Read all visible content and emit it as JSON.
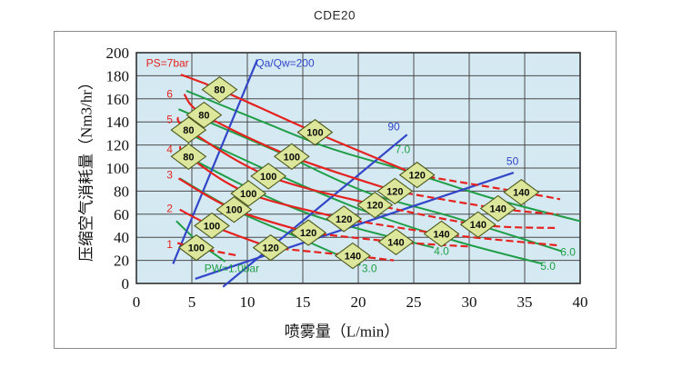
{
  "title": "CDE20",
  "chart_data": {
    "type": "line",
    "title": "CDE20",
    "xlabel": "喷雾量（L/min）",
    "ylabel": "压缩空气消耗量（Nm3/hr）",
    "xlim": [
      0,
      40
    ],
    "ylim": [
      0,
      200
    ],
    "x_ticks": [
      0,
      5,
      10,
      15,
      20,
      25,
      30,
      35,
      40
    ],
    "y_ticks": [
      0,
      20,
      40,
      60,
      80,
      100,
      120,
      140,
      160,
      180,
      200
    ],
    "grid": true,
    "legend_position": "none",
    "colors": {
      "plot_bg": "#d5e9f2",
      "grid": "#4a4a4a",
      "plot_border": "#2f2f2f",
      "frame": "#8a8a8a",
      "red": "#e42320",
      "green": "#1f9e47",
      "blue": "#3246c8",
      "marker_fill": "#dce79b",
      "marker_border": "#4e5a1d",
      "text": "#111111"
    },
    "red_series": [
      {
        "name": "PS=7bar",
        "label": "PS=7bar",
        "label_pos": [
          2.8,
          191
        ],
        "dash_from": 3,
        "points": [
          [
            4.0,
            181
          ],
          [
            7.5,
            168
          ],
          [
            16.1,
            131
          ],
          [
            25.3,
            94
          ],
          [
            34.7,
            79
          ],
          [
            38.2,
            73
          ]
        ],
        "markers": [
          {
            "label": "80",
            "x": 7.5,
            "y": 168
          },
          {
            "label": "100",
            "x": 16.1,
            "y": 131
          },
          {
            "label": "120",
            "x": 25.3,
            "y": 94
          },
          {
            "label": "140",
            "x": 34.7,
            "y": 79
          }
        ]
      },
      {
        "name": "PS=6bar",
        "label": "6",
        "label_pos": [
          3.0,
          164
        ],
        "dash_from": 3,
        "points": [
          [
            4.3,
            164
          ],
          [
            6.1,
            146
          ],
          [
            14.0,
            110
          ],
          [
            23.3,
            80
          ],
          [
            32.6,
            65
          ],
          [
            38.0,
            60
          ]
        ],
        "markers": [
          {
            "label": "80",
            "x": 6.1,
            "y": 146
          },
          {
            "label": "100",
            "x": 14.0,
            "y": 110
          },
          {
            "label": "120",
            "x": 23.3,
            "y": 80
          },
          {
            "label": "140",
            "x": 32.6,
            "y": 65
          }
        ]
      },
      {
        "name": "PS=5bar",
        "label": "5",
        "label_pos": [
          3.0,
          142
        ],
        "dash_from": 3,
        "points": [
          [
            3.7,
            144
          ],
          [
            4.7,
            133
          ],
          [
            11.9,
            93
          ],
          [
            21.5,
            68
          ],
          [
            30.8,
            51
          ],
          [
            38.0,
            48
          ]
        ],
        "markers": [
          {
            "label": "80",
            "x": 4.7,
            "y": 133
          },
          {
            "label": "100",
            "x": 11.9,
            "y": 93
          },
          {
            "label": "120",
            "x": 21.5,
            "y": 68
          },
          {
            "label": "140",
            "x": 30.8,
            "y": 51
          }
        ]
      },
      {
        "name": "PS=4bar",
        "label": "4",
        "label_pos": [
          3.0,
          116
        ],
        "dash_from": 3,
        "points": [
          [
            3.9,
            119
          ],
          [
            4.7,
            110
          ],
          [
            10.1,
            78
          ],
          [
            18.7,
            56
          ],
          [
            27.5,
            43
          ],
          [
            38.0,
            33
          ]
        ],
        "markers": [
          {
            "label": "80",
            "x": 4.7,
            "y": 110
          },
          {
            "label": "100",
            "x": 10.1,
            "y": 78
          },
          {
            "label": "120",
            "x": 18.7,
            "y": 56
          },
          {
            "label": "140",
            "x": 27.5,
            "y": 43
          }
        ]
      },
      {
        "name": "PS=3bar",
        "label": "3",
        "label_pos": [
          3.0,
          94
        ],
        "dash_from": 2,
        "points": [
          [
            3.8,
            91
          ],
          [
            8.8,
            64
          ],
          [
            15.5,
            44
          ],
          [
            23.4,
            36
          ],
          [
            30.0,
            32
          ]
        ],
        "markers": [
          {
            "label": "100",
            "x": 8.8,
            "y": 64
          },
          {
            "label": "120",
            "x": 15.5,
            "y": 44
          },
          {
            "label": "140",
            "x": 23.4,
            "y": 36
          }
        ]
      },
      {
        "name": "PS=2bar",
        "label": "2",
        "label_pos": [
          3.0,
          65
        ],
        "dash_from": 2,
        "points": [
          [
            3.9,
            64
          ],
          [
            6.8,
            50
          ],
          [
            12.1,
            31
          ],
          [
            19.5,
            24
          ],
          [
            23.2,
            20
          ]
        ],
        "markers": [
          {
            "label": "100",
            "x": 6.8,
            "y": 50
          },
          {
            "label": "120",
            "x": 12.1,
            "y": 31
          },
          {
            "label": "140",
            "x": 19.5,
            "y": 24
          }
        ]
      },
      {
        "name": "PS=1bar",
        "label": "1",
        "label_pos": [
          3.0,
          34
        ],
        "dash_from": 1,
        "points": [
          [
            3.7,
            35
          ],
          [
            5.4,
            31
          ],
          [
            9.2,
            24
          ]
        ],
        "markers": [
          {
            "label": "100",
            "x": 5.4,
            "y": 31
          }
        ]
      }
    ],
    "green_series": [
      {
        "name": "PW=7.0bar",
        "label": "7.0",
        "label_pos": [
          24.0,
          116
        ],
        "points": [
          [
            4.5,
            167
          ],
          [
            10.9,
            142
          ],
          [
            17.2,
            118
          ],
          [
            24.2,
            98
          ],
          [
            32.0,
            74
          ],
          [
            40.0,
            54
          ]
        ]
      },
      {
        "name": "PW=6.0bar",
        "label": "6.0",
        "label_pos": [
          38.9,
          27
        ],
        "points": [
          [
            3.8,
            151
          ],
          [
            12.3,
            116
          ],
          [
            20.5,
            80
          ],
          [
            28.7,
            57
          ],
          [
            38.3,
            28
          ]
        ]
      },
      {
        "name": "PW=5.0bar",
        "label": "5.0",
        "label_pos": [
          37.1,
          15
        ],
        "points": [
          [
            4.2,
            132
          ],
          [
            12.3,
            96
          ],
          [
            20.5,
            63
          ],
          [
            28.7,
            37
          ],
          [
            36.6,
            17
          ]
        ]
      },
      {
        "name": "PW=4.0bar",
        "label": "4.0",
        "label_pos": [
          27.5,
          28
        ],
        "points": [
          [
            4.0,
            113
          ],
          [
            10.7,
            80
          ],
          [
            17.2,
            55
          ],
          [
            26.8,
            31
          ]
        ]
      },
      {
        "name": "PW=3.0bar",
        "label": "3.0",
        "label_pos": [
          21.0,
          13
        ],
        "points": [
          [
            3.9,
            91
          ],
          [
            9.0,
            63
          ],
          [
            14.8,
            39
          ],
          [
            20.2,
            16
          ]
        ]
      },
      {
        "name": "PW=1.0bar",
        "label": "PW=1.0bar",
        "label_pos": [
          8.6,
          13
        ],
        "points": [
          [
            3.6,
            54
          ],
          [
            5.7,
            35
          ],
          [
            8.0,
            19
          ]
        ]
      }
    ],
    "blue_lines": [
      {
        "name": "Qa/Qw=200",
        "label": "Qa/Qw=200",
        "label_pos": [
          13.4,
          191
        ],
        "points": [
          [
            3.3,
            17
          ],
          [
            10.9,
            194
          ]
        ]
      },
      {
        "name": "Qa/Qw=90",
        "label": "90",
        "label_pos": [
          23.2,
          136
        ],
        "points": [
          [
            7.8,
            -3
          ],
          [
            24.4,
            129
          ]
        ]
      },
      {
        "name": "Qa/Qw=50",
        "label": "50",
        "label_pos": [
          33.9,
          106
        ],
        "points": [
          [
            5.3,
            4
          ],
          [
            34.0,
            96
          ]
        ]
      }
    ]
  }
}
